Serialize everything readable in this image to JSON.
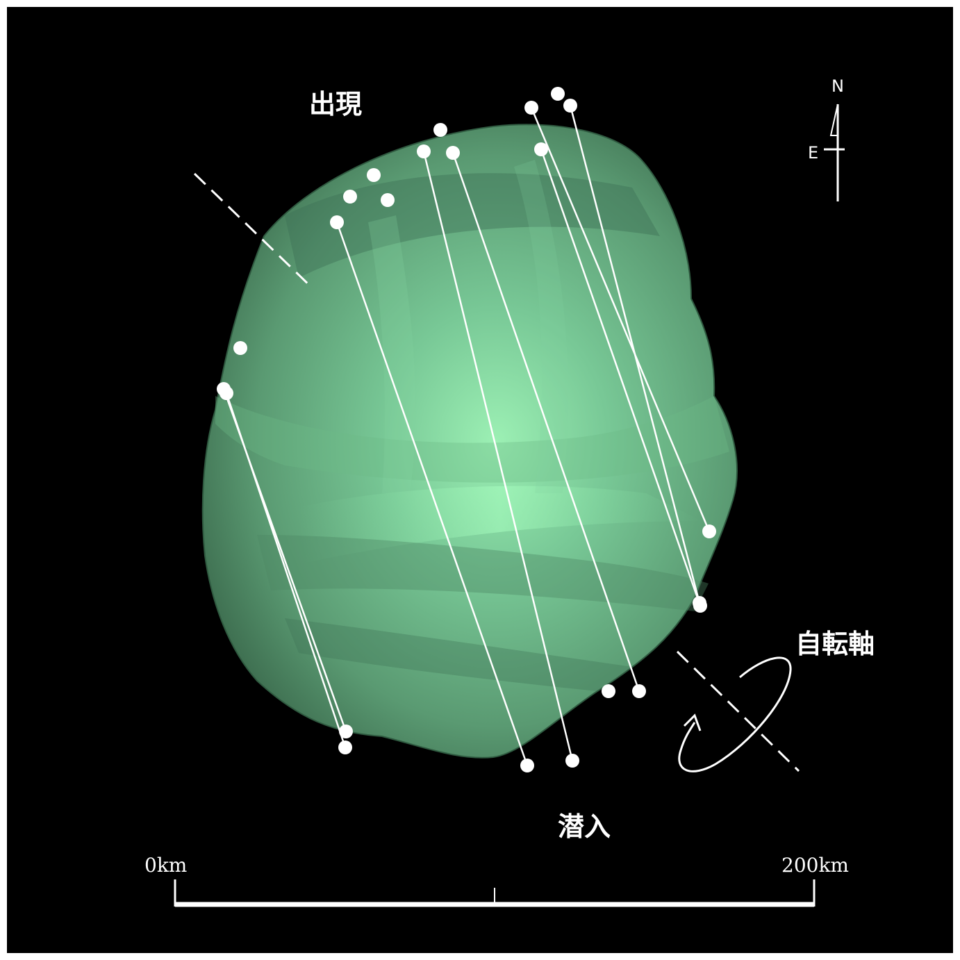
{
  "labels": {
    "reappearance": "出現",
    "disappearance": "潜入",
    "rotation_axis": "自転軸"
  },
  "compass": {
    "north": "N",
    "east": "E"
  },
  "scale_bar": {
    "start_label": "0km",
    "end_label": "200km"
  },
  "colors": {
    "background": "#000000",
    "asteroid_light": "#9cf0b4",
    "asteroid_mid": "#6fb98a",
    "asteroid_dark": "#3d6d4f",
    "chord": "#ffffff"
  },
  "chord_count": 8
}
